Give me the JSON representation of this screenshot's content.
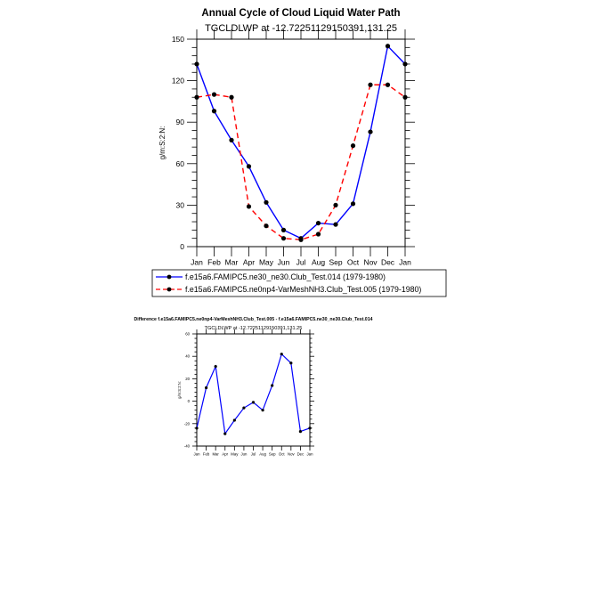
{
  "chart_data": [
    {
      "type": "line",
      "title": "Annual Cycle of Cloud Liquid Water Path",
      "subtitle": "TGCLDLWP at -12.72251129150391,131.25",
      "ylabel": "g/m:S:2:N:",
      "xlabel": "",
      "categories": [
        "Jan",
        "Feb",
        "Mar",
        "Apr",
        "May",
        "Jun",
        "Jul",
        "Aug",
        "Sep",
        "Oct",
        "Nov",
        "Dec",
        "Jan"
      ],
      "ylim": [
        0,
        150
      ],
      "yticks": [
        0,
        30,
        60,
        90,
        120,
        150
      ],
      "grid": false,
      "legend_position": "bottom",
      "series": [
        {
          "name": "f.e15a6.FAMIPC5.ne30_ne30.Club_Test.014 (1979-1980)",
          "color": "#0000ff",
          "dashed": false,
          "values": [
            132,
            98,
            77,
            58,
            32,
            12,
            6,
            17,
            16,
            31,
            83,
            145,
            132
          ]
        },
        {
          "name": "f.e15a6.FAMIPC5.ne0np4-VarMeshNH3.Club_Test.005 (1979-1980)",
          "color": "#ff0000",
          "dashed": true,
          "values": [
            108,
            110,
            108,
            29,
            15,
            6,
            5,
            9,
            30,
            73,
            117,
            117,
            108
          ]
        }
      ]
    },
    {
      "type": "line",
      "title": "Difference f.e15a6.FAMIPC5.ne0np4-VarMeshNH3.Club_Test.005 - f.e15a6.FAMIPC5.ne30_ne30.Club_Test.014",
      "subtitle": "TGCLDLWP at -12.72251129150391,131.25",
      "ylabel": "g/m:S:2:N:",
      "xlabel": "",
      "categories": [
        "Jan",
        "Feb",
        "Mar",
        "Apr",
        "May",
        "Jun",
        "Jul",
        "Aug",
        "Sep",
        "Oct",
        "Nov",
        "Dec",
        "Jan"
      ],
      "ylim": [
        -40,
        60
      ],
      "yticks": [
        -40,
        -20,
        0,
        20,
        40,
        60
      ],
      "grid": false,
      "series": [
        {
          "name": "Difference",
          "color": "#0000ff",
          "dashed": false,
          "values": [
            -24,
            12,
            31,
            -29,
            -17,
            -6,
            -1,
            -8,
            14,
            42,
            34,
            -27,
            -24
          ]
        }
      ]
    }
  ]
}
